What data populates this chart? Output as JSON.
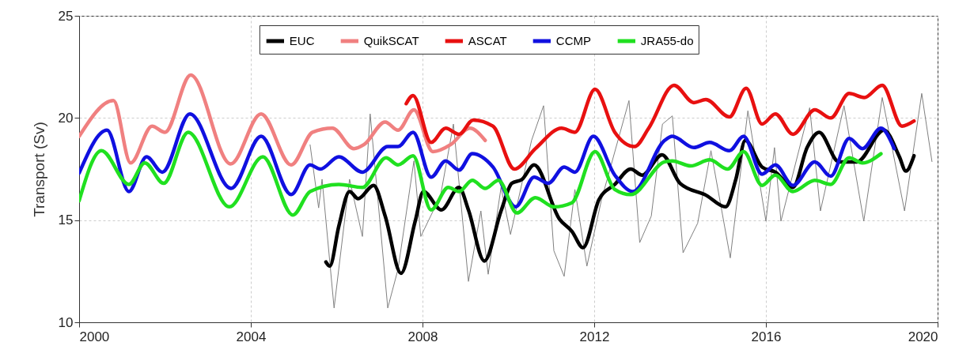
{
  "chart_data": {
    "type": "line",
    "ylabel": "Transport (Sv)",
    "xlim": [
      2000,
      2020
    ],
    "xticks": [
      2000,
      2004,
      2008,
      2012,
      2016,
      2020
    ],
    "ylim": [
      10,
      25
    ],
    "yticks": [
      10,
      15,
      20,
      25
    ],
    "grid": true,
    "legend": "top",
    "line_style": "solid",
    "marker": "none",
    "series": [
      {
        "color": "#808080",
        "x": [
          2005.38,
          2005.58,
          2005.66,
          2005.94,
          2006.3,
          2006.6,
          2006.78,
          2007.19,
          2007.43,
          2007.8,
          2007.96,
          2008.42,
          2008.72,
          2009.07,
          2009.36,
          2009.53,
          2009.83,
          2010.05,
          2010.54,
          2010.82,
          2011.06,
          2011.3,
          2011.55,
          2011.83,
          2012.17,
          2012.81,
          2013.06,
          2013.33,
          2013.59,
          2013.82,
          2014.07,
          2014.41,
          2014.72,
          2015.17,
          2015.58,
          2016.0,
          2016.2,
          2016.35,
          2017.02,
          2017.27,
          2017.82,
          2018.28,
          2018.71,
          2019.23,
          2019.63,
          2019.87
        ],
        "values": [
          18.7,
          15.6,
          17.0,
          10.7,
          17.0,
          14.2,
          20.2,
          10.7,
          12.6,
          17.9,
          14.2,
          16.2,
          19.7,
          12.0,
          15.45,
          12.35,
          16.6,
          14.3,
          18.9,
          20.6,
          13.5,
          12.25,
          16.5,
          12.75,
          16.0,
          20.85,
          13.9,
          15.2,
          19.7,
          20.1,
          13.4,
          14.85,
          18.4,
          13.15,
          20.35,
          14.95,
          18.55,
          14.95,
          20.5,
          15.45,
          20.6,
          14.95,
          21.0,
          15.45,
          21.2,
          17.85
        ]
      },
      {
        "name": "EUC",
        "color": "#000000",
        "x": [
          2005.75,
          2005.84,
          2006.05,
          2006.3,
          2006.5,
          2006.86,
          2007.13,
          2007.5,
          2007.83,
          2008.02,
          2008.44,
          2008.85,
          2009.07,
          2009.44,
          2009.83,
          2010.08,
          2010.32,
          2010.6,
          2011.19,
          2011.48,
          2011.74,
          2012.11,
          2012.48,
          2012.85,
          2013.12,
          2013.58,
          2014.0,
          2014.62,
          2015.06,
          2015.3,
          2015.52,
          2015.91,
          2016.22,
          2016.63,
          2016.96,
          2017.24,
          2017.7,
          2018.12,
          2018.75,
          2019.11,
          2019.26,
          2019.45
        ],
        "values": [
          12.95,
          12.75,
          14.7,
          16.4,
          16.05,
          16.7,
          15.2,
          12.4,
          14.95,
          16.4,
          15.5,
          16.6,
          15.5,
          13.0,
          15.45,
          16.8,
          17.0,
          17.7,
          15.05,
          14.45,
          13.65,
          16.0,
          16.75,
          17.5,
          17.2,
          18.2,
          16.8,
          16.2,
          15.65,
          17.0,
          18.9,
          17.6,
          17.35,
          16.6,
          18.55,
          19.3,
          17.85,
          17.85,
          19.4,
          18.1,
          17.4,
          18.15
        ]
      },
      {
        "name": "QuikSCAT",
        "color": "#f08080",
        "x": [
          2000.0,
          2000.8,
          2001.2,
          2001.7,
          2002.0,
          2002.6,
          2003.53,
          2004.24,
          2004.94,
          2005.44,
          2005.9,
          2006.4,
          2006.64,
          2007.13,
          2007.43,
          2007.8,
          2008.24,
          2008.66,
          2009.1,
          2009.46
        ],
        "values": [
          19.1,
          20.85,
          17.8,
          19.6,
          19.3,
          22.1,
          17.75,
          20.2,
          17.7,
          19.3,
          19.5,
          18.5,
          18.7,
          19.8,
          19.4,
          20.4,
          18.35,
          18.7,
          19.5,
          18.9
        ]
      },
      {
        "name": "ASCAT",
        "color": "#e81010",
        "x": [
          2007.62,
          2007.78,
          2008.2,
          2008.54,
          2008.85,
          2009.18,
          2009.64,
          2010.14,
          2010.63,
          2011.24,
          2011.55,
          2012.02,
          2012.48,
          2012.94,
          2013.27,
          2013.86,
          2014.32,
          2014.6,
          2015.15,
          2015.54,
          2015.91,
          2016.22,
          2016.63,
          2017.14,
          2017.51,
          2017.94,
          2018.29,
          2018.71,
          2019.17,
          2019.45
        ],
        "values": [
          20.7,
          21.1,
          18.8,
          19.5,
          19.2,
          19.9,
          19.6,
          17.5,
          18.5,
          19.5,
          19.3,
          21.4,
          19.3,
          18.6,
          19.5,
          21.6,
          20.75,
          20.9,
          20.05,
          21.45,
          19.7,
          20.2,
          19.2,
          20.4,
          20.0,
          21.2,
          21.0,
          21.6,
          19.6,
          19.85
        ]
      },
      {
        "name": "CCMP",
        "color": "#1010e0",
        "x": [
          2000.0,
          2000.65,
          2001.16,
          2001.57,
          2001.94,
          2002.58,
          2003.54,
          2004.24,
          2004.94,
          2005.38,
          2005.62,
          2006.05,
          2006.6,
          2007.19,
          2007.43,
          2007.78,
          2008.2,
          2008.54,
          2008.85,
          2009.16,
          2009.64,
          2010.17,
          2010.6,
          2010.93,
          2011.3,
          2011.55,
          2011.98,
          2012.48,
          2012.9,
          2013.64,
          2013.82,
          2014.32,
          2014.69,
          2015.15,
          2015.48,
          2015.91,
          2016.22,
          2016.63,
          2017.14,
          2017.51,
          2017.94,
          2018.25,
          2018.68,
          2018.99
        ],
        "values": [
          17.3,
          19.4,
          16.4,
          18.1,
          17.35,
          20.2,
          16.55,
          19.1,
          16.25,
          17.7,
          17.5,
          18.1,
          17.35,
          18.6,
          18.6,
          19.3,
          17.1,
          17.9,
          17.45,
          18.25,
          17.6,
          15.65,
          17.1,
          16.8,
          17.6,
          17.35,
          19.1,
          17.2,
          16.4,
          18.9,
          19.1,
          18.55,
          18.8,
          18.4,
          19.1,
          17.25,
          17.7,
          16.7,
          17.85,
          17.15,
          19.0,
          18.5,
          19.5,
          18.5
        ]
      },
      {
        "name": "JRA55-do",
        "color": "#20e020",
        "x": [
          2000.0,
          2000.52,
          2001.16,
          2001.53,
          2001.97,
          2002.54,
          2003.5,
          2004.28,
          2004.98,
          2005.38,
          2006.05,
          2006.6,
          2007.15,
          2007.43,
          2007.78,
          2008.2,
          2008.6,
          2008.85,
          2009.16,
          2009.46,
          2009.77,
          2010.2,
          2010.63,
          2011.06,
          2011.48,
          2012.02,
          2012.48,
          2012.85,
          2013.64,
          2013.82,
          2014.25,
          2014.69,
          2015.11,
          2015.48,
          2015.91,
          2016.22,
          2016.63,
          2017.14,
          2017.51,
          2017.94,
          2018.25,
          2018.68
        ],
        "values": [
          15.95,
          18.4,
          16.75,
          17.8,
          16.8,
          19.3,
          15.65,
          18.1,
          15.25,
          16.4,
          16.75,
          16.6,
          18.05,
          17.7,
          18.15,
          15.5,
          16.6,
          16.4,
          16.95,
          16.55,
          16.95,
          15.35,
          16.1,
          15.65,
          15.85,
          18.35,
          16.5,
          16.25,
          17.85,
          17.9,
          17.65,
          17.95,
          17.5,
          18.35,
          16.7,
          17.2,
          16.4,
          16.95,
          16.75,
          18.05,
          17.8,
          18.25
        ]
      }
    ]
  }
}
